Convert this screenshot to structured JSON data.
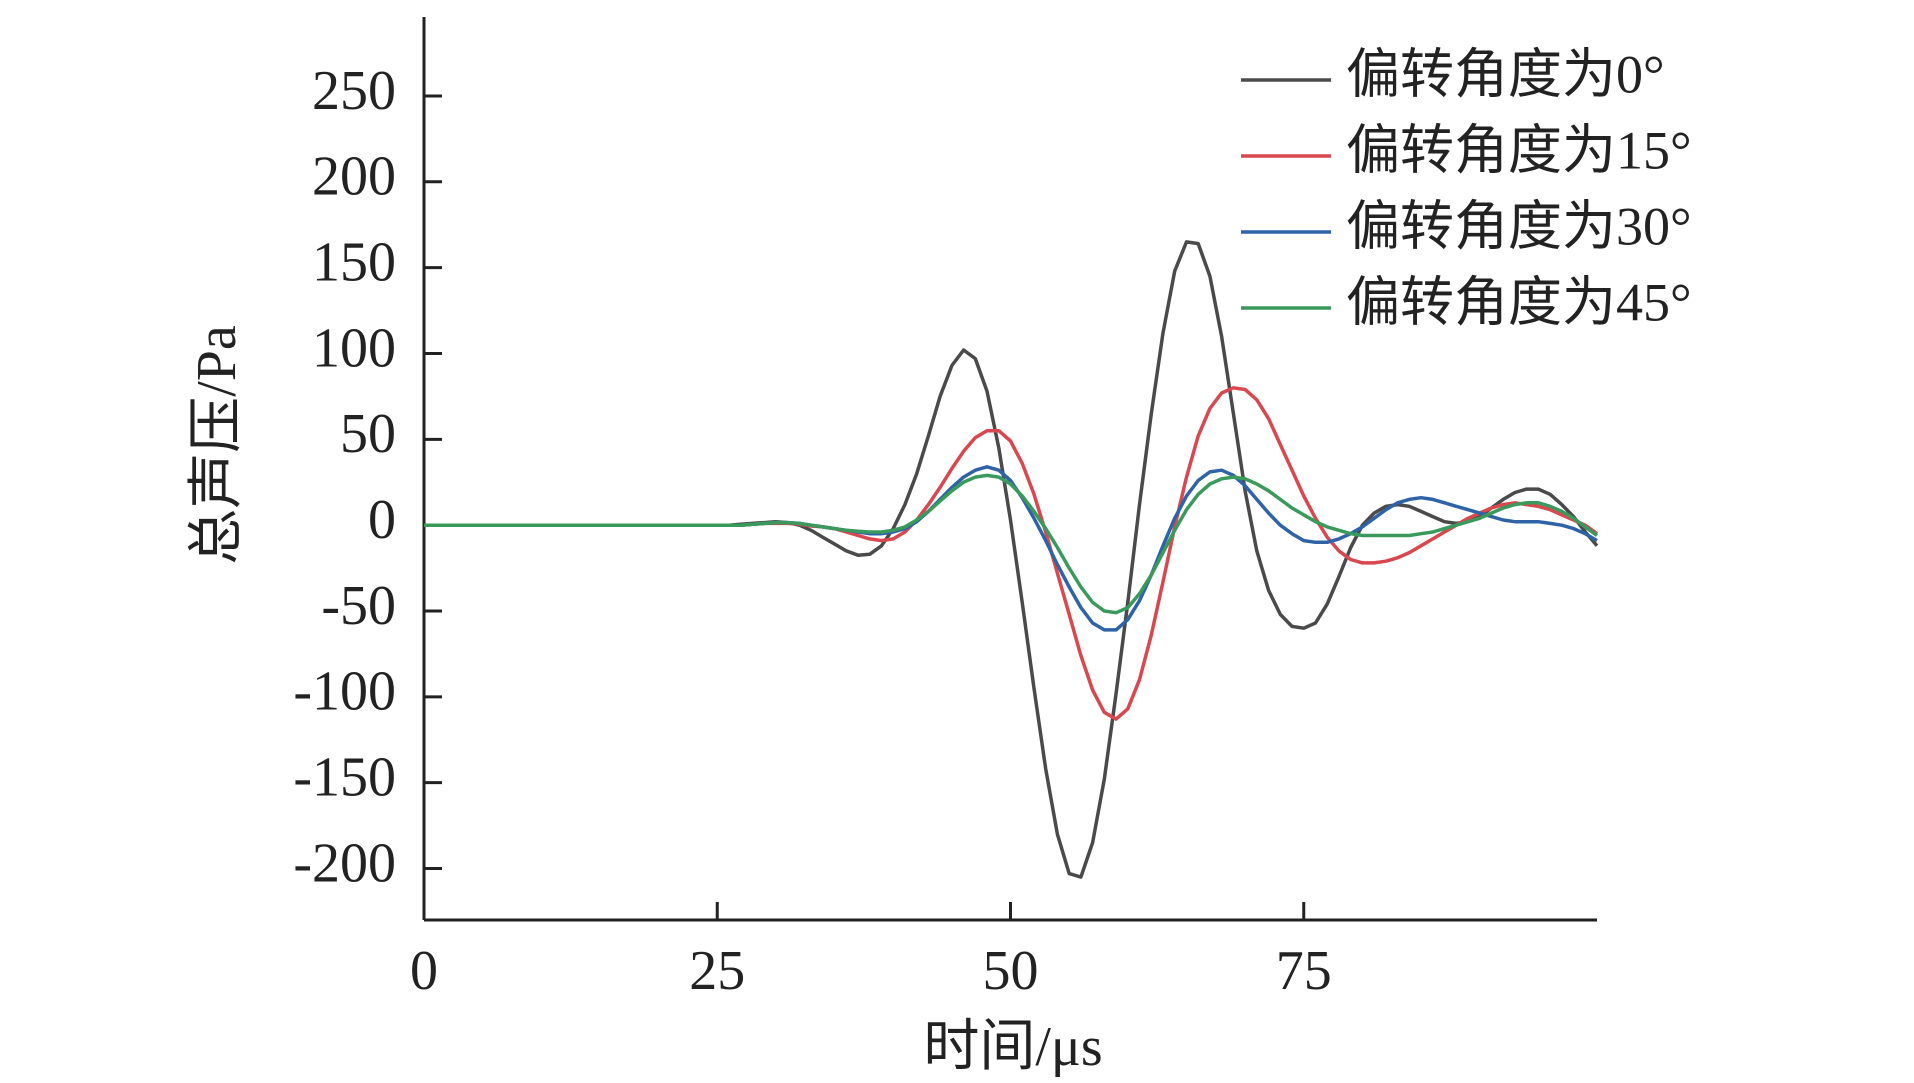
{
  "chart_data": {
    "type": "line",
    "x_label": "时间/μs",
    "y_label": "总声压/Pa",
    "x": [
      0,
      10,
      20,
      25,
      26,
      27,
      28,
      29,
      30,
      31,
      32,
      33,
      34,
      35,
      36,
      37,
      38,
      39,
      40,
      41,
      42,
      43,
      44,
      45,
      46,
      47,
      48,
      49,
      50,
      51,
      52,
      53,
      54,
      55,
      56,
      57,
      58,
      59,
      60,
      61,
      62,
      63,
      64,
      65,
      66,
      67,
      68,
      69,
      70,
      71,
      72,
      73,
      74,
      75,
      76,
      77,
      78,
      79,
      80,
      81,
      82,
      83,
      84,
      85,
      86,
      87,
      88,
      89,
      90,
      91,
      92,
      93,
      94,
      95,
      96,
      97,
      98,
      99,
      100
    ],
    "series": [
      {
        "name": "偏转角度为0°",
        "color": "#4a4a4a",
        "values": [
          0,
          0,
          0,
          0,
          0,
          0.5,
          1,
          1.5,
          2,
          1.5,
          0,
          -3,
          -7,
          -11,
          -15,
          -17.5,
          -17,
          -12,
          -2,
          12,
          30,
          52,
          75,
          93,
          102,
          97,
          78,
          45,
          3,
          -45,
          -95,
          -142,
          -180,
          -203,
          -205,
          -185,
          -148,
          -98,
          -45,
          12,
          65,
          112,
          148,
          165,
          164,
          145,
          110,
          65,
          20,
          -15,
          -38,
          -52,
          -59,
          -60,
          -57,
          -46,
          -30,
          -13,
          0,
          7,
          11,
          12,
          11,
          8,
          5,
          2,
          1,
          2,
          5,
          10,
          15,
          19,
          21,
          21,
          18,
          12,
          5,
          -4,
          -12
        ]
      },
      {
        "name": "偏转角度为15°",
        "color": "#d9474f",
        "values": [
          0,
          0,
          0,
          0,
          0,
          0,
          0.5,
          1,
          1,
          1,
          0.5,
          -0.5,
          -1,
          -2,
          -4,
          -6,
          -8,
          -9,
          -8,
          -4,
          3,
          12,
          22,
          33,
          43,
          51,
          55,
          55,
          49,
          36,
          18,
          -4,
          -28,
          -52,
          -76,
          -96,
          -109,
          -113,
          -107,
          -90,
          -64,
          -33,
          -1,
          28,
          52,
          68,
          77,
          80,
          79,
          73,
          62,
          47,
          32,
          17,
          4,
          -7,
          -15,
          -20,
          -22,
          -22,
          -21,
          -19,
          -16,
          -12,
          -8,
          -4,
          0,
          4,
          7,
          10,
          12,
          13,
          12,
          11,
          9,
          6,
          3,
          0,
          -5
        ]
      },
      {
        "name": "偏转角度为30°",
        "color": "#2f63a8",
        "values": [
          0,
          0,
          0,
          0,
          0,
          0,
          0.5,
          1,
          1.5,
          1.5,
          1,
          0,
          -1,
          -2,
          -3,
          -4,
          -5,
          -5,
          -4,
          -2,
          2,
          8,
          15,
          22,
          28,
          32,
          34,
          32,
          26,
          16,
          4,
          -9,
          -23,
          -36,
          -48,
          -57,
          -61,
          -61,
          -55,
          -44,
          -29,
          -12,
          4,
          17,
          26,
          31,
          32,
          29,
          23,
          15,
          7,
          0,
          -5,
          -9,
          -10,
          -10,
          -8,
          -5,
          -1,
          4,
          9,
          13,
          15,
          16,
          15,
          13,
          11,
          9,
          7,
          5,
          3,
          2,
          2,
          2,
          1,
          0,
          -2,
          -5,
          -9
        ]
      },
      {
        "name": "偏转角度为45°",
        "color": "#3a9a5c",
        "values": [
          0,
          0,
          0,
          0,
          0,
          0,
          0.5,
          1,
          1.5,
          1.5,
          1,
          0,
          -1,
          -2,
          -3,
          -3.5,
          -4,
          -4,
          -3,
          -1,
          3,
          8,
          14,
          20,
          25,
          28,
          29,
          28,
          24,
          17,
          8,
          -2,
          -13,
          -25,
          -36,
          -45,
          -50,
          -51,
          -48,
          -40,
          -29,
          -16,
          -3,
          9,
          18,
          24,
          27,
          28,
          27,
          24,
          20,
          15,
          10,
          6,
          2,
          -1,
          -3,
          -5,
          -6,
          -6,
          -6,
          -6,
          -6,
          -5,
          -4,
          -2,
          0,
          2,
          4,
          7,
          10,
          12,
          13,
          13,
          11,
          8,
          4,
          -1,
          -6
        ]
      }
    ],
    "xlim": [
      0,
      100
    ],
    "ylim": [
      -230,
      296
    ],
    "xticks": [
      0,
      25,
      50,
      75
    ],
    "yticks": [
      -200,
      -150,
      -100,
      -50,
      0,
      50,
      100,
      150,
      200,
      250
    ],
    "legend": "upper right"
  }
}
